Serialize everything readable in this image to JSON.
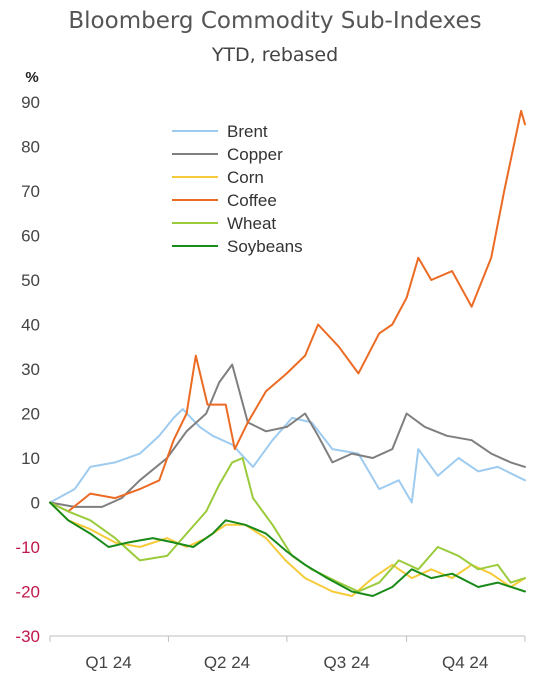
{
  "chart_data": {
    "type": "line",
    "title": "Bloomberg Commodity Sub-Indexes",
    "subtitle": "YTD, rebased",
    "y_unit": "%",
    "ylim": [
      -30,
      90
    ],
    "y_ticks": [
      90,
      80,
      70,
      60,
      50,
      40,
      30,
      20,
      10,
      0,
      -10,
      -20,
      -30
    ],
    "x_range": [
      "2024-01-01",
      "2024-12-31"
    ],
    "x_tick_labels": [
      "Q1 24",
      "Q2 24",
      "Q3 24",
      "Q4 24"
    ],
    "legend_position": "upper-center",
    "grid": false,
    "series": [
      {
        "name": "Brent",
        "color": "#9ecbf0",
        "points": [
          [
            "2024-01-01",
            0
          ],
          [
            "2024-01-20",
            3
          ],
          [
            "2024-02-01",
            8
          ],
          [
            "2024-02-20",
            9
          ],
          [
            "2024-03-10",
            11
          ],
          [
            "2024-03-25",
            15
          ],
          [
            "2024-04-05",
            19
          ],
          [
            "2024-04-12",
            21
          ],
          [
            "2024-04-25",
            17
          ],
          [
            "2024-05-05",
            15
          ],
          [
            "2024-05-20",
            13
          ],
          [
            "2024-06-05",
            8
          ],
          [
            "2024-06-20",
            14
          ],
          [
            "2024-07-05",
            19
          ],
          [
            "2024-07-20",
            18
          ],
          [
            "2024-08-05",
            12
          ],
          [
            "2024-08-25",
            11
          ],
          [
            "2024-09-10",
            3
          ],
          [
            "2024-09-25",
            5
          ],
          [
            "2024-10-05",
            0
          ],
          [
            "2024-10-10",
            12
          ],
          [
            "2024-10-25",
            6
          ],
          [
            "2024-11-10",
            10
          ],
          [
            "2024-11-25",
            7
          ],
          [
            "2024-12-10",
            8
          ],
          [
            "2024-12-31",
            5
          ]
        ]
      },
      {
        "name": "Copper",
        "color": "#7f7f7f",
        "points": [
          [
            "2024-01-01",
            0
          ],
          [
            "2024-01-20",
            -1
          ],
          [
            "2024-02-10",
            -1
          ],
          [
            "2024-02-25",
            1
          ],
          [
            "2024-03-10",
            5
          ],
          [
            "2024-03-31",
            10
          ],
          [
            "2024-04-15",
            16
          ],
          [
            "2024-04-30",
            20
          ],
          [
            "2024-05-10",
            27
          ],
          [
            "2024-05-20",
            31
          ],
          [
            "2024-06-01",
            18
          ],
          [
            "2024-06-15",
            16
          ],
          [
            "2024-07-01",
            17
          ],
          [
            "2024-07-15",
            20
          ],
          [
            "2024-07-25",
            15
          ],
          [
            "2024-08-05",
            9
          ],
          [
            "2024-08-20",
            11
          ],
          [
            "2024-09-05",
            10
          ],
          [
            "2024-09-20",
            12
          ],
          [
            "2024-10-01",
            20
          ],
          [
            "2024-10-15",
            17
          ],
          [
            "2024-11-01",
            15
          ],
          [
            "2024-11-20",
            14
          ],
          [
            "2024-12-05",
            11
          ],
          [
            "2024-12-20",
            9
          ],
          [
            "2024-12-31",
            8
          ]
        ]
      },
      {
        "name": "Corn",
        "color": "#f5cb3a",
        "points": [
          [
            "2024-01-01",
            0
          ],
          [
            "2024-01-15",
            -4
          ],
          [
            "2024-02-01",
            -6
          ],
          [
            "2024-02-20",
            -9
          ],
          [
            "2024-03-10",
            -10
          ],
          [
            "2024-03-31",
            -8
          ],
          [
            "2024-04-15",
            -10
          ],
          [
            "2024-04-30",
            -8
          ],
          [
            "2024-05-15",
            -5
          ],
          [
            "2024-05-30",
            -5
          ],
          [
            "2024-06-15",
            -8
          ],
          [
            "2024-06-30",
            -13
          ],
          [
            "2024-07-15",
            -17
          ],
          [
            "2024-08-05",
            -20
          ],
          [
            "2024-08-20",
            -21
          ],
          [
            "2024-09-05",
            -17
          ],
          [
            "2024-09-20",
            -14
          ],
          [
            "2024-10-05",
            -17
          ],
          [
            "2024-10-20",
            -15
          ],
          [
            "2024-11-05",
            -17
          ],
          [
            "2024-11-20",
            -14
          ],
          [
            "2024-12-05",
            -16
          ],
          [
            "2024-12-20",
            -19
          ],
          [
            "2024-12-31",
            -17
          ]
        ]
      },
      {
        "name": "Coffee",
        "color": "#ec6b24",
        "points": [
          [
            "2024-01-01",
            0
          ],
          [
            "2024-01-15",
            -2
          ],
          [
            "2024-02-01",
            2
          ],
          [
            "2024-02-20",
            1
          ],
          [
            "2024-03-10",
            3
          ],
          [
            "2024-03-25",
            5
          ],
          [
            "2024-04-05",
            14
          ],
          [
            "2024-04-15",
            20
          ],
          [
            "2024-04-22",
            33
          ],
          [
            "2024-05-01",
            22
          ],
          [
            "2024-05-15",
            22
          ],
          [
            "2024-05-22",
            12
          ],
          [
            "2024-06-01",
            18
          ],
          [
            "2024-06-15",
            25
          ],
          [
            "2024-07-01",
            29
          ],
          [
            "2024-07-15",
            33
          ],
          [
            "2024-07-25",
            40
          ],
          [
            "2024-08-10",
            35
          ],
          [
            "2024-08-25",
            29
          ],
          [
            "2024-09-10",
            38
          ],
          [
            "2024-09-20",
            40
          ],
          [
            "2024-10-01",
            46
          ],
          [
            "2024-10-10",
            55
          ],
          [
            "2024-10-20",
            50
          ],
          [
            "2024-11-05",
            52
          ],
          [
            "2024-11-20",
            44
          ],
          [
            "2024-12-05",
            55
          ],
          [
            "2024-12-15",
            70
          ],
          [
            "2024-12-28",
            88
          ],
          [
            "2024-12-31",
            85
          ]
        ]
      },
      {
        "name": "Wheat",
        "color": "#9acb3b",
        "points": [
          [
            "2024-01-01",
            0
          ],
          [
            "2024-01-15",
            -2
          ],
          [
            "2024-02-01",
            -4
          ],
          [
            "2024-02-20",
            -8
          ],
          [
            "2024-03-10",
            -13
          ],
          [
            "2024-03-31",
            -12
          ],
          [
            "2024-04-15",
            -7
          ],
          [
            "2024-04-30",
            -2
          ],
          [
            "2024-05-10",
            4
          ],
          [
            "2024-05-20",
            9
          ],
          [
            "2024-05-28",
            10
          ],
          [
            "2024-06-05",
            1
          ],
          [
            "2024-06-20",
            -5
          ],
          [
            "2024-07-05",
            -12
          ],
          [
            "2024-07-20",
            -15
          ],
          [
            "2024-08-10",
            -18
          ],
          [
            "2024-08-25",
            -20
          ],
          [
            "2024-09-10",
            -18
          ],
          [
            "2024-09-25",
            -13
          ],
          [
            "2024-10-10",
            -15
          ],
          [
            "2024-10-25",
            -10
          ],
          [
            "2024-11-10",
            -12
          ],
          [
            "2024-11-25",
            -15
          ],
          [
            "2024-12-10",
            -14
          ],
          [
            "2024-12-20",
            -18
          ],
          [
            "2024-12-31",
            -17
          ]
        ]
      },
      {
        "name": "Soybeans",
        "color": "#1a8a1a",
        "points": [
          [
            "2024-01-01",
            0
          ],
          [
            "2024-01-15",
            -4
          ],
          [
            "2024-02-01",
            -7
          ],
          [
            "2024-02-15",
            -10
          ],
          [
            "2024-03-01",
            -9
          ],
          [
            "2024-03-20",
            -8
          ],
          [
            "2024-04-05",
            -9
          ],
          [
            "2024-04-20",
            -10
          ],
          [
            "2024-05-05",
            -7
          ],
          [
            "2024-05-15",
            -4
          ],
          [
            "2024-05-30",
            -5
          ],
          [
            "2024-06-15",
            -7
          ],
          [
            "2024-07-01",
            -11
          ],
          [
            "2024-07-15",
            -14
          ],
          [
            "2024-08-01",
            -17
          ],
          [
            "2024-08-20",
            -20
          ],
          [
            "2024-09-05",
            -21
          ],
          [
            "2024-09-20",
            -19
          ],
          [
            "2024-10-05",
            -15
          ],
          [
            "2024-10-20",
            -17
          ],
          [
            "2024-11-05",
            -16
          ],
          [
            "2024-11-25",
            -19
          ],
          [
            "2024-12-10",
            -18
          ],
          [
            "2024-12-31",
            -20
          ]
        ]
      }
    ]
  }
}
